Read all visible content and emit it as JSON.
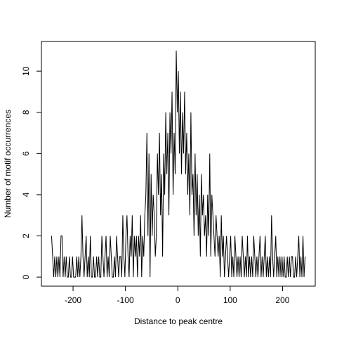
{
  "chart_data": {
    "type": "line",
    "xlabel": "Distance to peak centre",
    "ylabel": "Number of motif occurrences",
    "x": [
      -241,
      -239,
      -237,
      -235,
      -233,
      -231,
      -229,
      -227,
      -225,
      -223,
      -221,
      -219,
      -217,
      -215,
      -213,
      -211,
      -209,
      -207,
      -205,
      -203,
      -201,
      -199,
      -197,
      -195,
      -193,
      -191,
      -189,
      -187,
      -185,
      -183,
      -181,
      -179,
      -177,
      -175,
      -173,
      -171,
      -169,
      -167,
      -165,
      -163,
      -161,
      -159,
      -157,
      -155,
      -153,
      -151,
      -149,
      -147,
      -145,
      -143,
      -141,
      -139,
      -137,
      -135,
      -133,
      -131,
      -129,
      -127,
      -125,
      -123,
      -121,
      -119,
      -117,
      -115,
      -113,
      -111,
      -109,
      -107,
      -105,
      -103,
      -101,
      -99,
      -97,
      -95,
      -93,
      -91,
      -89,
      -87,
      -85,
      -83,
      -81,
      -79,
      -77,
      -75,
      -73,
      -71,
      -69,
      -67,
      -65,
      -63,
      -61,
      -59,
      -57,
      -55,
      -53,
      -51,
      -49,
      -47,
      -45,
      -43,
      -41,
      -39,
      -37,
      -35,
      -33,
      -31,
      -29,
      -27,
      -25,
      -23,
      -21,
      -19,
      -17,
      -15,
      -13,
      -11,
      -9,
      -7,
      -5,
      -3,
      -1,
      1,
      3,
      5,
      7,
      9,
      11,
      13,
      15,
      17,
      19,
      21,
      23,
      25,
      27,
      29,
      31,
      33,
      35,
      37,
      39,
      41,
      43,
      45,
      47,
      49,
      51,
      53,
      55,
      57,
      59,
      61,
      63,
      65,
      67,
      69,
      71,
      73,
      75,
      77,
      79,
      81,
      83,
      85,
      87,
      89,
      91,
      93,
      95,
      97,
      99,
      101,
      103,
      105,
      107,
      109,
      111,
      113,
      115,
      117,
      119,
      121,
      123,
      125,
      127,
      129,
      131,
      133,
      135,
      137,
      139,
      141,
      143,
      145,
      147,
      149,
      151,
      153,
      155,
      157,
      159,
      161,
      163,
      165,
      167,
      169,
      171,
      173,
      175,
      177,
      179,
      181,
      183,
      185,
      187,
      189,
      191,
      193,
      195,
      197,
      199,
      201,
      203,
      205,
      207,
      209,
      211,
      213,
      215,
      217,
      219,
      221,
      223,
      225,
      227,
      229,
      231,
      233,
      235,
      237,
      239,
      241,
      243
    ],
    "series": [
      {
        "color": "#000000",
        "values": [
          2,
          1,
          0,
          1,
          0,
          1,
          0,
          1,
          0,
          2,
          2,
          0,
          1,
          0,
          1,
          0,
          0,
          1,
          0,
          0,
          1,
          0,
          0,
          0,
          1,
          0,
          1,
          0,
          1,
          3,
          1,
          0,
          1,
          2,
          0,
          1,
          0,
          2,
          0,
          0,
          1,
          0,
          0,
          1,
          0,
          1,
          0,
          0,
          2,
          1,
          0,
          1,
          2,
          0,
          1,
          0,
          2,
          1,
          0,
          0,
          1,
          0,
          2,
          1,
          0,
          1,
          1,
          0,
          3,
          1,
          0,
          2,
          3,
          1,
          0,
          2,
          1,
          3,
          0,
          2,
          1,
          2,
          0,
          2,
          1,
          3,
          0,
          2,
          1,
          3,
          4,
          7,
          2,
          6,
          0,
          5,
          2,
          4,
          3,
          1,
          2,
          6,
          4,
          7,
          3,
          5,
          1,
          6,
          4,
          8,
          5,
          7,
          3,
          8,
          6,
          9,
          4,
          7,
          5,
          11,
          8,
          10,
          6,
          9,
          5,
          8,
          6,
          9,
          5,
          7,
          4,
          6,
          3,
          8,
          4,
          5,
          2,
          6,
          3,
          5,
          2,
          4,
          1,
          5,
          3,
          4,
          2,
          3,
          1,
          4,
          2,
          6,
          1,
          4,
          3,
          2,
          1,
          3,
          2,
          1,
          2,
          0,
          3,
          1,
          2,
          0,
          1,
          2,
          1,
          0,
          1,
          2,
          0,
          1,
          0,
          2,
          1,
          0,
          1,
          0,
          1,
          0,
          2,
          1,
          0,
          1,
          0,
          2,
          0,
          1,
          0,
          1,
          0,
          2,
          1,
          0,
          1,
          0,
          1,
          2,
          0,
          1,
          0,
          1,
          2,
          0,
          1,
          0,
          1,
          0,
          3,
          1,
          0,
          1,
          2,
          0,
          1,
          0,
          1,
          0,
          1,
          0,
          1,
          0,
          0,
          1,
          0,
          1,
          0,
          1,
          1,
          0,
          0,
          1,
          0,
          1,
          2,
          0,
          1,
          0,
          2,
          0,
          1
        ]
      }
    ],
    "xlim": [
      -260.4,
      262.4
    ],
    "ylim": [
      -0.44,
      11.44
    ],
    "xticks": [
      -200,
      -100,
      0,
      100,
      200
    ],
    "yticks": [
      0,
      2,
      4,
      6,
      8,
      10
    ]
  }
}
